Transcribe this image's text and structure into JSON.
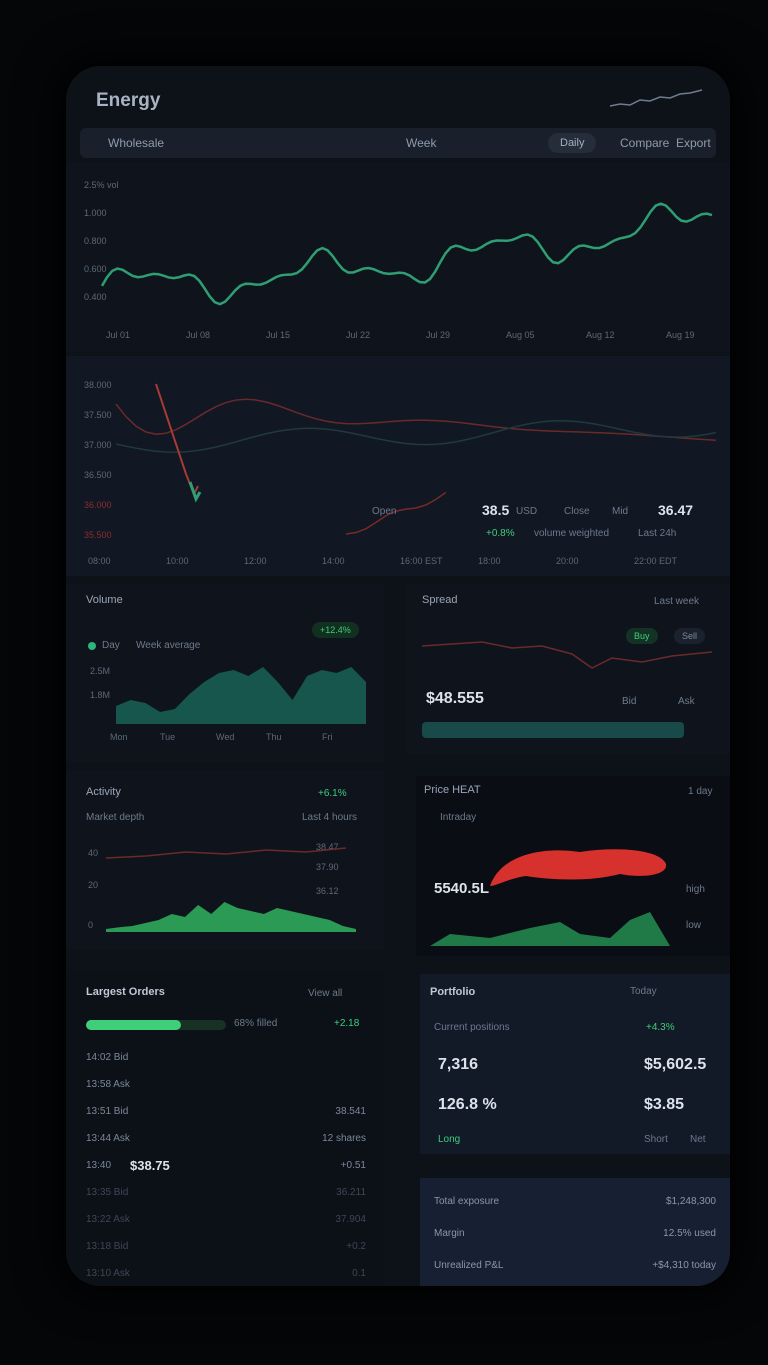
{
  "app": {
    "title": "Energy"
  },
  "toolbar": {
    "symbol": "Wholesale",
    "range": "Week",
    "view": "Daily",
    "compare": "Compare",
    "export": "Export"
  },
  "chart_main": {
    "ylabels": [
      "2.5% vol",
      "1.000",
      "0.800",
      "0.600",
      "0.400"
    ],
    "xlabels": [
      "Jul 01",
      "Jul 08",
      "Jul 15",
      "Jul 22",
      "Jul 29",
      "Aug 05",
      "Aug 12",
      "Aug 19"
    ]
  },
  "chart_secondary": {
    "ylabels": [
      "38.000",
      "37.500",
      "37.000",
      "36.500",
      "36.000",
      "35.500"
    ],
    "xlabels": [
      "08:00",
      "10:00",
      "12:00",
      "14:00",
      "16:00 EST",
      "18:00",
      "20:00",
      "22:00 EDT"
    ],
    "legend": {
      "open_label": "Open",
      "open_value": "38.5",
      "open_unit": "USD",
      "close_label": "Close",
      "close_value": "36.47",
      "mid_label": "Mid",
      "change": "+0.8%",
      "note": "volume weighted",
      "right_label": "Last 24h"
    }
  },
  "volume_panel": {
    "title": "Volume",
    "badge": "+12.4%",
    "legend_a": "Day",
    "legend_b": "Week average",
    "ylabels": [
      "2.5M",
      "1.8M"
    ],
    "xlabels": [
      "Mon",
      "Tue",
      "Wed",
      "Thu",
      "Fri"
    ]
  },
  "spread_panel": {
    "title": "Spread",
    "right": "Last week",
    "value": "$48.555",
    "chip_a": "Buy",
    "chip_b": "Sell",
    "note_a": "Bid",
    "note_b": "Ask"
  },
  "activity_panel": {
    "title": "Activity",
    "badge": "+6.1%",
    "subtitle": "Market depth",
    "subtitle_right": "Last 4 hours",
    "ylabels": [
      "40",
      "20",
      "0"
    ],
    "right_labels": [
      "38.47",
      "37.90",
      "36.12"
    ]
  },
  "heat_panel": {
    "title": "Price HEAT",
    "right": "1 day",
    "legend": "Intraday",
    "value": "5540.5L",
    "notes": [
      "high",
      "low"
    ]
  },
  "orders_panel": {
    "title": "Largest Orders",
    "right": "View all",
    "progress_label": "68% filled",
    "progress_value": "+2.18",
    "rows": [
      {
        "left": "14:02  Bid",
        "right": ""
      },
      {
        "left": "13:58  Ask",
        "right": ""
      },
      {
        "left": "13:51  Bid",
        "right": "38.541"
      },
      {
        "left": "13:44  Ask",
        "right": "12 shares"
      },
      {
        "left": "13:40",
        "bold": "$38.75",
        "right": "+0.51"
      },
      {
        "left": "13:35  Bid",
        "right": "36.211"
      },
      {
        "left": "13:22  Ask",
        "right": "37.904"
      },
      {
        "left": "13:18  Bid",
        "right": "+0.2"
      },
      {
        "left": "13:10  Ask",
        "right": "0.1"
      }
    ]
  },
  "portfolio_panel": {
    "title": "Portfolio",
    "right": "Today",
    "sub_left": "Current positions",
    "sub_right": "+4.3%",
    "v1_left": "7,316",
    "v1_right": "$5,602.5",
    "v2_left": "126.8 %",
    "v2_right": "$3.85",
    "foot_left": "Long",
    "foot_right_a": "Short",
    "foot_right_b": "Net"
  },
  "summary_panel": {
    "rows": [
      {
        "left": "Total exposure",
        "right": "$1,248,300"
      },
      {
        "left": "Margin",
        "right": "12.5% used"
      },
      {
        "left": "Unrealized P&L",
        "right": "+$4,310 today"
      }
    ]
  }
}
